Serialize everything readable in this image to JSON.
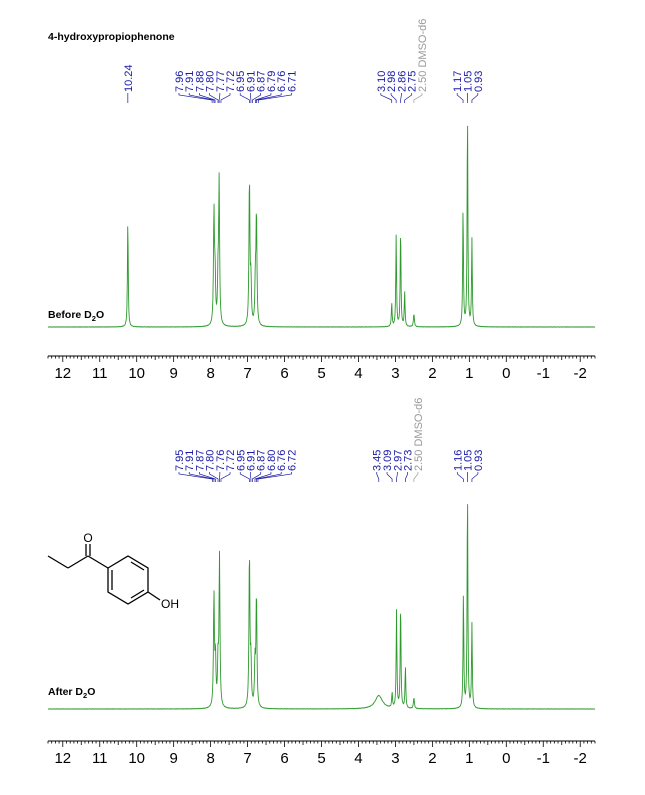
{
  "title": "4-hydroxypropiophenone",
  "colors": {
    "spectrum": "#2e9a2e",
    "peak_label": "#1a1aa6",
    "solvent_label": "#9a9a9a",
    "axis": "#000000"
  },
  "chart_data": [
    {
      "type": "line",
      "panel_label": {
        "prefix": "Before D",
        "sub": "2",
        "suffix": "O"
      },
      "xlabel": "",
      "ylabel": "",
      "x_reversed": true,
      "xlim": [
        12.4,
        -2.4
      ],
      "x_ticks": [
        "12",
        "11",
        "10",
        "9",
        "8",
        "7",
        "6",
        "5",
        "4",
        "3",
        "2",
        "1",
        "0",
        "-1",
        "-2"
      ],
      "peak_labels": [
        {
          "ppm": 10.24,
          "text": "10.24"
        },
        {
          "ppm": 7.96,
          "text": "7.96"
        },
        {
          "ppm": 7.91,
          "text": "7.91"
        },
        {
          "ppm": 7.88,
          "text": "7.88"
        },
        {
          "ppm": 7.8,
          "text": "7.80"
        },
        {
          "ppm": 7.77,
          "text": "7.77"
        },
        {
          "ppm": 7.72,
          "text": "7.72"
        },
        {
          "ppm": 6.95,
          "text": "6.95"
        },
        {
          "ppm": 6.91,
          "text": "6.91"
        },
        {
          "ppm": 6.87,
          "text": "6.87"
        },
        {
          "ppm": 6.79,
          "text": "6.79"
        },
        {
          "ppm": 6.76,
          "text": "6.76"
        },
        {
          "ppm": 6.71,
          "text": "6.71"
        },
        {
          "ppm": 3.1,
          "text": "3.10"
        },
        {
          "ppm": 2.98,
          "text": "2.98"
        },
        {
          "ppm": 2.86,
          "text": "2.86"
        },
        {
          "ppm": 2.75,
          "text": "2.75"
        },
        {
          "ppm": 2.5,
          "text": "2.50 DMSO-d6",
          "solvent": true
        },
        {
          "ppm": 1.17,
          "text": "1.17"
        },
        {
          "ppm": 1.05,
          "text": "1.05"
        },
        {
          "ppm": 0.93,
          "text": "0.93"
        }
      ],
      "peaks": [
        {
          "ppm": 10.24,
          "height": 0.5,
          "width": 0.012
        },
        {
          "ppm": 7.91,
          "height": 0.52,
          "width": 0.015
        },
        {
          "ppm": 7.88,
          "height": 0.22,
          "width": 0.015
        },
        {
          "ppm": 7.8,
          "height": 0.2,
          "width": 0.015
        },
        {
          "ppm": 7.77,
          "height": 0.66,
          "width": 0.015
        },
        {
          "ppm": 6.95,
          "height": 0.68,
          "width": 0.015
        },
        {
          "ppm": 6.91,
          "height": 0.2,
          "width": 0.015
        },
        {
          "ppm": 6.79,
          "height": 0.2,
          "width": 0.015
        },
        {
          "ppm": 6.76,
          "height": 0.52,
          "width": 0.015
        },
        {
          "ppm": 3.1,
          "height": 0.11,
          "width": 0.012
        },
        {
          "ppm": 2.98,
          "height": 0.42,
          "width": 0.012
        },
        {
          "ppm": 2.86,
          "height": 0.46,
          "width": 0.012
        },
        {
          "ppm": 2.75,
          "height": 0.16,
          "width": 0.012
        },
        {
          "ppm": 2.5,
          "height": 0.06,
          "width": 0.015
        },
        {
          "ppm": 1.17,
          "height": 0.55,
          "width": 0.012
        },
        {
          "ppm": 1.05,
          "height": 1.0,
          "width": 0.012
        },
        {
          "ppm": 0.93,
          "height": 0.4,
          "width": 0.012
        }
      ]
    },
    {
      "type": "line",
      "panel_label": {
        "prefix": "After D",
        "sub": "2",
        "suffix": "O"
      },
      "xlabel": "",
      "ylabel": "",
      "x_reversed": true,
      "xlim": [
        12.4,
        -2.4
      ],
      "x_ticks": [
        "12",
        "11",
        "10",
        "9",
        "8",
        "7",
        "6",
        "5",
        "4",
        "3",
        "2",
        "1",
        "0",
        "-1",
        "-2"
      ],
      "peak_labels": [
        {
          "ppm": 7.95,
          "text": "7.95"
        },
        {
          "ppm": 7.91,
          "text": "7.91"
        },
        {
          "ppm": 7.87,
          "text": "7.87"
        },
        {
          "ppm": 7.8,
          "text": "7.80"
        },
        {
          "ppm": 7.76,
          "text": "7.76"
        },
        {
          "ppm": 7.72,
          "text": "7.72"
        },
        {
          "ppm": 6.95,
          "text": "6.95"
        },
        {
          "ppm": 6.91,
          "text": "6.91"
        },
        {
          "ppm": 6.87,
          "text": "6.87"
        },
        {
          "ppm": 6.8,
          "text": "6.80"
        },
        {
          "ppm": 6.76,
          "text": "6.76"
        },
        {
          "ppm": 6.72,
          "text": "6.72"
        },
        {
          "ppm": 3.45,
          "text": "3.45"
        },
        {
          "ppm": 3.09,
          "text": "3.09"
        },
        {
          "ppm": 2.97,
          "text": "2.97"
        },
        {
          "ppm": 2.73,
          "text": "2.73"
        },
        {
          "ppm": 2.5,
          "text": "2.50 DMSO-d6",
          "solvent": true
        },
        {
          "ppm": 1.16,
          "text": "1.16"
        },
        {
          "ppm": 1.05,
          "text": "1.05"
        },
        {
          "ppm": 0.93,
          "text": "0.93"
        }
      ],
      "peaks": [
        {
          "ppm": 7.91,
          "height": 0.51,
          "width": 0.015
        },
        {
          "ppm": 7.87,
          "height": 0.22,
          "width": 0.015
        },
        {
          "ppm": 7.8,
          "height": 0.2,
          "width": 0.015
        },
        {
          "ppm": 7.76,
          "height": 0.68,
          "width": 0.015
        },
        {
          "ppm": 6.95,
          "height": 0.7,
          "width": 0.015
        },
        {
          "ppm": 6.91,
          "height": 0.2,
          "width": 0.015
        },
        {
          "ppm": 6.8,
          "height": 0.2,
          "width": 0.015
        },
        {
          "ppm": 6.76,
          "height": 0.52,
          "width": 0.015
        },
        {
          "ppm": 3.45,
          "height": 0.06,
          "width": 0.12
        },
        {
          "ppm": 3.09,
          "height": 0.07,
          "width": 0.012
        },
        {
          "ppm": 2.97,
          "height": 0.44,
          "width": 0.012
        },
        {
          "ppm": 2.86,
          "height": 0.48,
          "width": 0.012
        },
        {
          "ppm": 2.73,
          "height": 0.19,
          "width": 0.012
        },
        {
          "ppm": 2.5,
          "height": 0.05,
          "width": 0.015
        },
        {
          "ppm": 1.16,
          "height": 0.52,
          "width": 0.012
        },
        {
          "ppm": 1.05,
          "height": 1.0,
          "width": 0.012
        },
        {
          "ppm": 0.93,
          "height": 0.38,
          "width": 0.012
        }
      ]
    }
  ],
  "structure": {
    "oxygen_label": "O",
    "hydroxyl_label": "OH"
  }
}
